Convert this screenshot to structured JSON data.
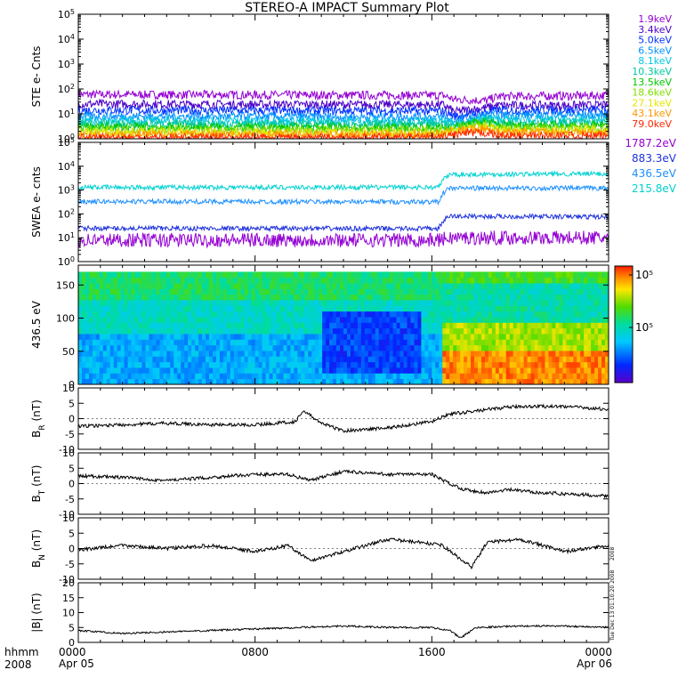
{
  "title": "STEREO-A IMPACT Summary Plot",
  "corner_labels": {
    "format": "hhmm",
    "year": "2008"
  },
  "time_axis": {
    "ticks": [
      {
        "hour": 0,
        "label": "0000",
        "date": "Apr 05"
      },
      {
        "hour": 8,
        "label": "0800",
        "date": ""
      },
      {
        "hour": 16,
        "label": "1600",
        "date": ""
      },
      {
        "hour": 24,
        "label": "0000",
        "date": "Apr 06"
      }
    ]
  },
  "side_stamp": [
    "2008",
    "Tue Dec 13 01:10:20 2008"
  ],
  "colors": {
    "axis": "#000000",
    "trace": "#000000"
  },
  "chart_data": [
    {
      "type": "line",
      "ylabel": "STE e- Cnts",
      "yscale": "log",
      "ylim": [
        1,
        100000
      ],
      "ytick_exponents": [
        0,
        1,
        2,
        3,
        4,
        5
      ],
      "series": [
        {
          "name": "1.9keV",
          "color": "#9400d3",
          "x": [
            0,
            16.5,
            17.0,
            18.5,
            19.0,
            24
          ],
          "y": [
            60,
            55,
            38,
            34,
            50,
            55
          ]
        },
        {
          "name": "3.4keV",
          "color": "#4b00c8",
          "x": [
            0,
            16.5,
            17.0,
            18.5,
            19.0,
            24
          ],
          "y": [
            25,
            23,
            12,
            18,
            22,
            22
          ]
        },
        {
          "name": "5.0keV",
          "color": "#0030ff",
          "x": [
            0,
            16.5,
            17.0,
            18.5,
            19.0,
            24
          ],
          "y": [
            14,
            13,
            8,
            12,
            14,
            14
          ]
        },
        {
          "name": "6.5keV",
          "color": "#0090ff",
          "x": [
            0,
            16.5,
            17.0,
            18.5,
            19.0,
            24
          ],
          "y": [
            8,
            7.5,
            5,
            9,
            9,
            9
          ]
        },
        {
          "name": "8.1keV",
          "color": "#00c8e0",
          "x": [
            0,
            16.5,
            17.0,
            18.5,
            19.0,
            24
          ],
          "y": [
            5.5,
            5,
            4,
            7,
            6,
            6
          ]
        },
        {
          "name": "10.3keV",
          "color": "#00c8a0",
          "x": [
            0,
            16.5,
            17.0,
            18.5,
            19.0,
            24
          ],
          "y": [
            4,
            3.8,
            3.5,
            6,
            4.5,
            4.5
          ]
        },
        {
          "name": "13.5keV",
          "color": "#00c800",
          "x": [
            0,
            16.5,
            17.0,
            18.5,
            19.0,
            24
          ],
          "y": [
            3,
            2.8,
            3,
            5,
            3.5,
            3.5
          ]
        },
        {
          "name": "18.6keV",
          "color": "#80dc00",
          "x": [
            0,
            16.5,
            17.0,
            18.5,
            19.0,
            24
          ],
          "y": [
            2.3,
            2.2,
            2.5,
            4,
            2.8,
            2.8
          ]
        },
        {
          "name": "27.1keV",
          "color": "#e6e600",
          "x": [
            0,
            16.5,
            17.0,
            18.5,
            19.0,
            24
          ],
          "y": [
            1.8,
            1.7,
            2.2,
            3,
            2.2,
            2.2
          ]
        },
        {
          "name": "43.1keV",
          "color": "#ff9600",
          "x": [
            0,
            16.5,
            17.0,
            18.5,
            19.0,
            24
          ],
          "y": [
            1.5,
            1.5,
            2,
            2.5,
            1.8,
            1.8
          ]
        },
        {
          "name": "79.0keV",
          "color": "#ff2800",
          "x": [
            0,
            16.5,
            17.0,
            18.5,
            19.0,
            24
          ],
          "y": [
            1.1,
            1.1,
            1.5,
            1.8,
            1.3,
            1.3
          ]
        }
      ]
    },
    {
      "type": "line",
      "ylabel": "SWEA e- cnts",
      "yscale": "log",
      "ylim": [
        1,
        100000
      ],
      "ytick_exponents": [
        0,
        1,
        2,
        3,
        4,
        5
      ],
      "series": [
        {
          "name": "1787.2eV",
          "color": "#9400d3",
          "x": [
            0,
            16.3,
            16.8,
            24
          ],
          "y": [
            8,
            8,
            10,
            10
          ]
        },
        {
          "name": "883.3eV",
          "color": "#1e32dc",
          "x": [
            0,
            16.3,
            16.8,
            24
          ],
          "y": [
            25,
            24,
            80,
            75
          ]
        },
        {
          "name": "436.5eV",
          "color": "#1e90ff",
          "x": [
            0,
            16.3,
            16.8,
            24
          ],
          "y": [
            330,
            320,
            1200,
            1200
          ]
        },
        {
          "name": "215.8eV",
          "color": "#00d2d2",
          "x": [
            0,
            16.3,
            16.8,
            24
          ],
          "y": [
            1300,
            1300,
            4500,
            4800
          ]
        }
      ]
    },
    {
      "type": "heatmap",
      "ylabel": "436.5 eV",
      "ylim": [
        0,
        180
      ],
      "yticks": [
        0,
        50,
        100,
        150
      ],
      "colorbar": {
        "scale": "log",
        "tick_labels": [
          "10⁵",
          "10⁵"
        ]
      },
      "regions": [
        {
          "x_range": [
            0,
            16.5
          ],
          "y_range": [
            130,
            180
          ],
          "level": 0.55
        },
        {
          "x_range": [
            0,
            16.5
          ],
          "y_range": [
            80,
            130
          ],
          "level": 0.45
        },
        {
          "x_range": [
            0,
            16.5
          ],
          "y_range": [
            0,
            80
          ],
          "level": 0.32
        },
        {
          "x_range": [
            11,
            15.5
          ],
          "y_range": [
            20,
            110
          ],
          "level": 0.18
        },
        {
          "x_range": [
            16.5,
            24
          ],
          "y_range": [
            150,
            180
          ],
          "level": 0.62
        },
        {
          "x_range": [
            16.5,
            24
          ],
          "y_range": [
            90,
            150
          ],
          "level": 0.48
        },
        {
          "x_range": [
            16.5,
            24
          ],
          "y_range": [
            50,
            90
          ],
          "level": 0.72
        },
        {
          "x_range": [
            16.5,
            24
          ],
          "y_range": [
            0,
            50
          ],
          "level": 0.9
        }
      ]
    },
    {
      "type": "line",
      "ylabel": "B",
      "ylabel_sub": "R",
      "ylabel_unit": " (nT)",
      "ylim": [
        -10,
        10
      ],
      "yticks": [
        -10,
        -5,
        0,
        5,
        10
      ],
      "x": [
        0,
        2,
        4,
        6,
        8,
        9.8,
        10.2,
        11,
        12,
        14,
        16,
        16.8,
        17.5,
        18.5,
        19.2,
        20,
        22,
        24
      ],
      "y": [
        -2.5,
        -2,
        -1.5,
        -2,
        -2,
        -1,
        2.5,
        -1.5,
        -4,
        -3,
        -1,
        1.5,
        2,
        3,
        3.5,
        4,
        4,
        3
      ]
    },
    {
      "type": "line",
      "ylabel": "B",
      "ylabel_sub": "T",
      "ylabel_unit": " (nT)",
      "ylim": [
        -10,
        10
      ],
      "yticks": [
        -10,
        -5,
        0,
        5,
        10
      ],
      "x": [
        0,
        2,
        4,
        6,
        8,
        9.5,
        10.5,
        12,
        14,
        16,
        16.8,
        17.5,
        18.5,
        19.5,
        21,
        24
      ],
      "y": [
        2.5,
        2,
        1,
        2,
        3,
        3,
        1,
        4,
        3,
        3,
        0,
        -2,
        -3,
        -2,
        -3,
        -4
      ]
    },
    {
      "type": "line",
      "ylabel": "B",
      "ylabel_sub": "N",
      "ylabel_unit": " (nT)",
      "ylim": [
        -10,
        10
      ],
      "yticks": [
        -10,
        -5,
        0,
        5,
        10
      ],
      "x": [
        0,
        2,
        4,
        6,
        8,
        9.5,
        10.5,
        12,
        14,
        15.5,
        16.5,
        17.2,
        17.8,
        18.5,
        20,
        22,
        24
      ],
      "y": [
        -0.5,
        1,
        0,
        1,
        -1,
        1,
        -4,
        -1,
        3,
        2,
        1,
        -3,
        -6,
        2,
        3,
        -1,
        1
      ]
    },
    {
      "type": "line",
      "ylabel": "|B| (nT)",
      "ylim": [
        0,
        20
      ],
      "yticks": [
        0,
        5,
        10,
        15,
        20
      ],
      "x": [
        0,
        2,
        4,
        6,
        8,
        10,
        12,
        14,
        16,
        16.8,
        17.3,
        18,
        20,
        22,
        24
      ],
      "y": [
        4,
        3,
        3.5,
        4,
        4.5,
        5,
        5.5,
        5,
        5,
        4,
        1.5,
        5,
        5.5,
        5.5,
        5
      ]
    }
  ],
  "legends": {
    "ste": [
      "1.9keV",
      "3.4keV",
      "5.0keV",
      "6.5keV",
      "8.1keV",
      "10.3keV",
      "13.5keV",
      "18.6keV",
      "27.1keV",
      "43.1keV",
      "79.0keV"
    ],
    "swea": [
      "1787.2eV",
      "883.3eV",
      "436.5eV",
      "215.8eV"
    ]
  }
}
